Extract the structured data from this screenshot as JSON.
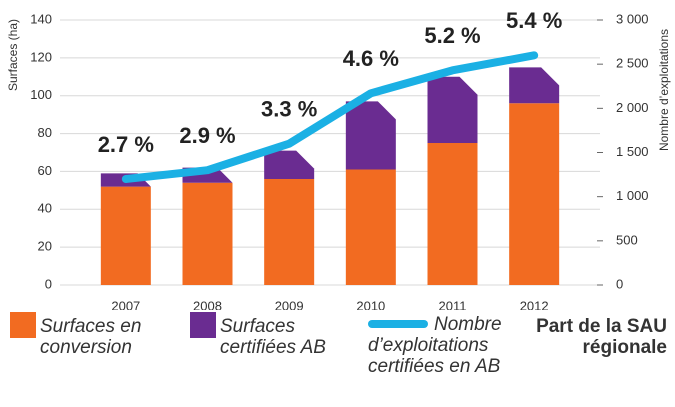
{
  "chart_data": {
    "type": "bar",
    "categories": [
      "2007",
      "2008",
      "2009",
      "2010",
      "2011",
      "2012"
    ],
    "ylabel": "Surfaces (ha)",
    "y2label": "Nombre d’exploitations",
    "ylim": [
      0,
      140
    ],
    "yticks": [
      0,
      20,
      40,
      60,
      80,
      100,
      120,
      140
    ],
    "y2lim": [
      0,
      3000
    ],
    "y2ticks": [
      0,
      500,
      {
        "value": 1000,
        "label": "1 000"
      },
      {
        "value": 1500,
        "label": "1 500"
      },
      {
        "value": 2000,
        "label": "2 000"
      },
      {
        "value": 2500,
        "label": "2 500"
      },
      {
        "value": 3000,
        "label": "3 000"
      }
    ],
    "grid": true,
    "stacked": true,
    "series": [
      {
        "name": "Surfaces en conversion",
        "color": "#f26b21",
        "values": [
          52,
          54,
          56,
          61,
          75,
          96
        ]
      },
      {
        "name": "Surfaces certifiées AB",
        "color": "#6a2c91",
        "values": [
          7,
          8,
          15,
          36,
          35,
          19
        ]
      },
      {
        "name": "Nombre d’exploitations certifiées en AB",
        "color": "#1bb0e4",
        "type": "line",
        "axis": "y2",
        "values": [
          1200,
          1300,
          1600,
          2170,
          2430,
          2600
        ]
      }
    ],
    "share": {
      "name": "Part de la SAU régionale",
      "values": [
        2.7,
        2.9,
        3.3,
        4.6,
        5.2,
        5.4
      ],
      "value_labels": [
        "2.7 %",
        "2.9 %",
        "3.3 %",
        "4.6 %",
        "5.2 %",
        "5.4 %"
      ]
    }
  }
}
